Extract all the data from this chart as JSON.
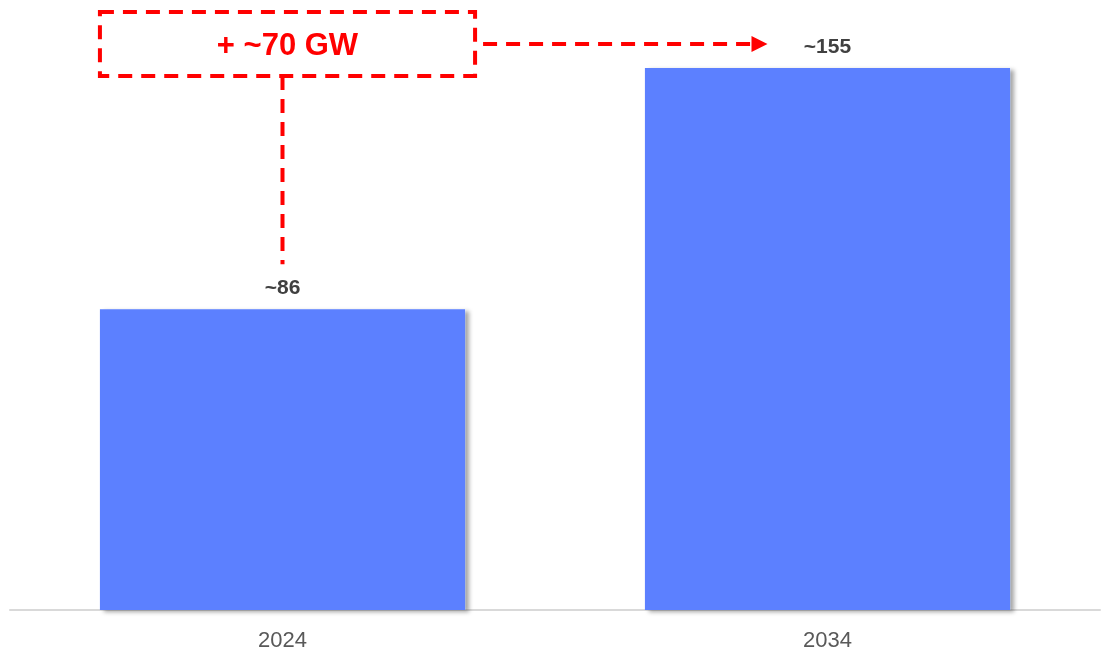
{
  "chart_data": {
    "type": "bar",
    "categories": [
      "2024",
      "2034"
    ],
    "values": [
      86,
      155
    ],
    "value_labels": [
      "~86",
      "~155"
    ],
    "color": "#5b80ff",
    "annotations": [
      "+ ~70 GW"
    ]
  }
}
